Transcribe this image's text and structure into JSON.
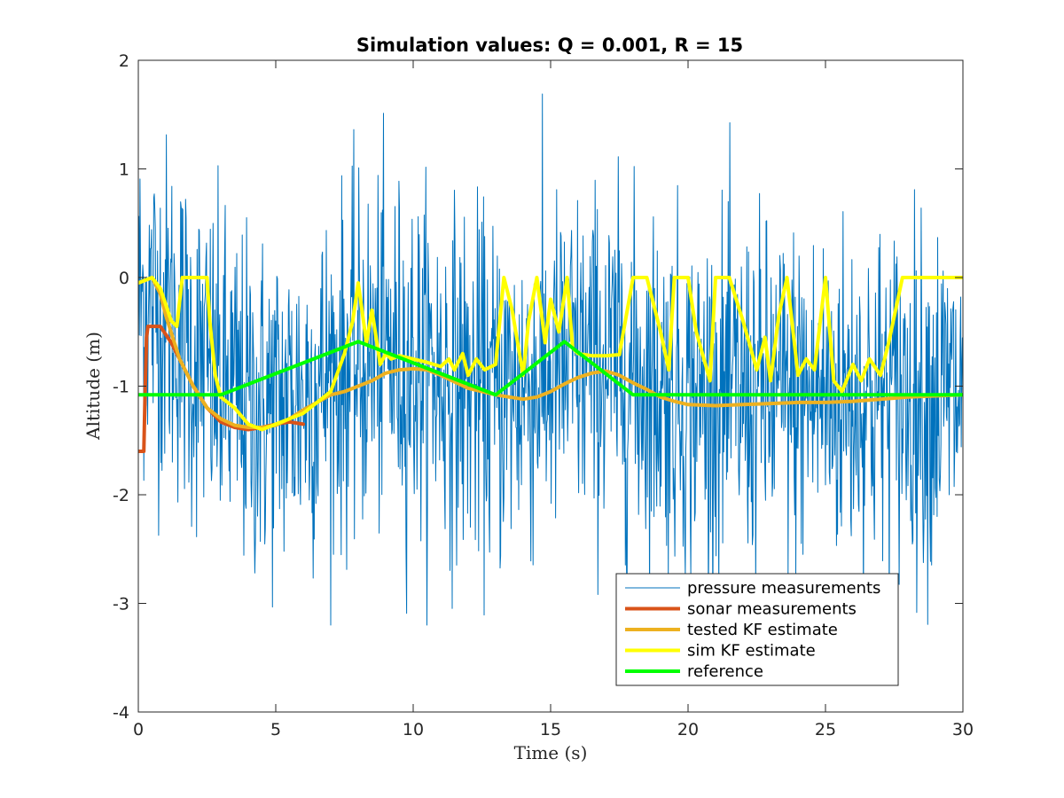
{
  "chart_data": {
    "type": "line",
    "title": "Simulation values: Q = 0.001, R = 15",
    "xlabel": "Time (s)",
    "ylabel": "Altitude (m)",
    "xlim": [
      0,
      30
    ],
    "ylim": [
      -4,
      2
    ],
    "xticks": [
      0,
      5,
      10,
      15,
      20,
      25,
      30
    ],
    "xtick_labels": [
      "0",
      "5",
      "10",
      "15",
      "20",
      "25",
      "30"
    ],
    "yticks": [
      -4,
      -3,
      -2,
      -1,
      0,
      1,
      2
    ],
    "ytick_labels": [
      "-4",
      "-3",
      "-2",
      "-1",
      "0",
      "1",
      "2"
    ],
    "grid": false,
    "legend_position": "bottom-right",
    "series": [
      {
        "name": "pressure measurements",
        "color": "#0072BD",
        "style": "noisy-thin",
        "approx": "dense noisy samples, roughly Gaussian around the estimate, std ~0.8 m",
        "x": [
          0,
          1,
          2,
          3,
          4,
          5,
          6,
          7,
          8,
          9,
          10,
          11,
          12,
          13,
          14,
          15,
          16,
          17,
          18,
          19,
          20,
          21,
          22,
          23,
          24,
          25,
          26,
          27,
          28,
          29,
          30
        ],
        "y": [
          -0.2,
          -0.3,
          -0.7,
          -1.0,
          -1.2,
          -1.2,
          -1.1,
          -0.9,
          -0.8,
          -0.7,
          -0.8,
          -0.9,
          -1.0,
          -1.1,
          -1.0,
          -0.9,
          -0.8,
          -0.8,
          -0.9,
          -1.0,
          -1.1,
          -1.1,
          -1.1,
          -1.1,
          -1.1,
          -1.1,
          -1.1,
          -1.1,
          -1.1,
          -1.1,
          -1.1
        ]
      },
      {
        "name": "sonar measurements",
        "color": "#D95319",
        "style": "thick",
        "x": [
          0.0,
          0.2,
          0.25,
          0.3,
          0.35,
          0.8,
          1.2,
          2.0,
          2.5,
          3.0,
          3.5,
          4.0,
          4.5,
          5.0,
          5.5,
          6.0
        ],
        "y": [
          -1.6,
          -1.6,
          -1.0,
          -0.55,
          -0.45,
          -0.45,
          -0.6,
          -1.0,
          -1.2,
          -1.33,
          -1.38,
          -1.4,
          -1.38,
          -1.35,
          -1.33,
          -1.35
        ]
      },
      {
        "name": "tested KF estimate",
        "color": "#EDB120",
        "style": "thick",
        "x": [
          0,
          0.5,
          0.8,
          1.0,
          1.5,
          2.0,
          2.5,
          3.0,
          3.5,
          4.0,
          4.5,
          5.0,
          5.5,
          6.0,
          6.5,
          7.0,
          7.5,
          8.0,
          8.5,
          9.0,
          9.5,
          10.0,
          10.5,
          11.0,
          11.5,
          12.0,
          12.5,
          13.0,
          13.5,
          14.0,
          14.5,
          15.0,
          15.5,
          16.0,
          16.5,
          17.0,
          17.5,
          18.0,
          18.5,
          19.0,
          19.5,
          20.0,
          21.0,
          22.0,
          23.0,
          24.0,
          25.0,
          26.0,
          27.0,
          28.0,
          29.0,
          30.0
        ],
        "y": [
          -0.05,
          0.0,
          -0.15,
          -0.35,
          -0.75,
          -1.0,
          -1.2,
          -1.3,
          -1.36,
          -1.38,
          -1.38,
          -1.36,
          -1.3,
          -1.22,
          -1.15,
          -1.08,
          -1.05,
          -1.0,
          -0.95,
          -0.88,
          -0.85,
          -0.84,
          -0.85,
          -0.9,
          -0.96,
          -1.02,
          -1.05,
          -1.08,
          -1.1,
          -1.12,
          -1.1,
          -1.05,
          -0.98,
          -0.92,
          -0.88,
          -0.86,
          -0.9,
          -0.97,
          -1.03,
          -1.1,
          -1.14,
          -1.17,
          -1.18,
          -1.17,
          -1.16,
          -1.15,
          -1.15,
          -1.14,
          -1.12,
          -1.1,
          -1.09,
          -1.08
        ]
      },
      {
        "name": "sim KF estimate",
        "color": "#FFFF00",
        "style": "thick",
        "x": [
          0,
          0.5,
          0.8,
          1.0,
          1.2,
          1.4,
          1.6,
          2.5,
          2.6,
          2.8,
          3.0,
          3.5,
          4.0,
          4.5,
          5.0,
          5.5,
          6.0,
          6.5,
          7.0,
          7.5,
          7.8,
          8.0,
          8.3,
          8.5,
          8.8,
          9.0,
          9.2,
          9.5,
          10.0,
          10.5,
          11.0,
          11.3,
          11.5,
          11.8,
          12.0,
          12.3,
          12.6,
          13.0,
          13.3,
          13.6,
          14.0,
          14.2,
          14.5,
          14.8,
          15.0,
          15.3,
          15.6,
          15.8,
          16.0,
          16.5,
          17.0,
          17.5,
          18.0,
          18.2,
          18.5,
          19.0,
          19.3,
          19.5,
          20.0,
          20.3,
          20.8,
          21.0,
          21.5,
          22.0,
          22.5,
          22.8,
          23.0,
          23.3,
          23.6,
          24.0,
          24.3,
          24.6,
          25.0,
          25.3,
          25.6,
          26.0,
          26.3,
          26.6,
          27.0,
          27.3,
          27.8,
          28.0,
          29.0,
          30.0
        ],
        "y": [
          -0.05,
          0.0,
          -0.1,
          -0.25,
          -0.4,
          -0.45,
          0.0,
          0.0,
          -0.4,
          -0.9,
          -1.1,
          -1.2,
          -1.35,
          -1.4,
          -1.35,
          -1.3,
          -1.25,
          -1.15,
          -1.05,
          -0.7,
          -0.4,
          -0.05,
          -0.6,
          -0.3,
          -0.8,
          -0.7,
          -0.75,
          -0.72,
          -0.75,
          -0.78,
          -0.82,
          -0.75,
          -0.85,
          -0.7,
          -0.9,
          -0.75,
          -0.85,
          -0.8,
          -0.0,
          -0.3,
          -0.9,
          -0.4,
          -0.0,
          -0.6,
          -0.2,
          -0.5,
          -0.0,
          -0.65,
          -0.7,
          -0.72,
          -0.72,
          -0.71,
          -0.0,
          -0.0,
          -0.0,
          -0.5,
          -0.85,
          -0.0,
          -0.0,
          -0.5,
          -0.95,
          -0.0,
          -0.0,
          -0.4,
          -0.85,
          -0.55,
          -0.95,
          -0.35,
          -0.0,
          -0.9,
          -0.75,
          -0.85,
          -0.0,
          -0.95,
          -1.05,
          -0.8,
          -0.95,
          -0.75,
          -0.9,
          -0.6,
          -0.0,
          -0.0,
          -0.0,
          -0.0
        ]
      },
      {
        "name": "reference",
        "color": "#00FF00",
        "style": "thick",
        "x": [
          0,
          3,
          8,
          13,
          15.5,
          18,
          30
        ],
        "y": [
          -1.08,
          -1.08,
          -0.59,
          -1.08,
          -0.59,
          -1.08,
          -1.08
        ]
      }
    ]
  }
}
